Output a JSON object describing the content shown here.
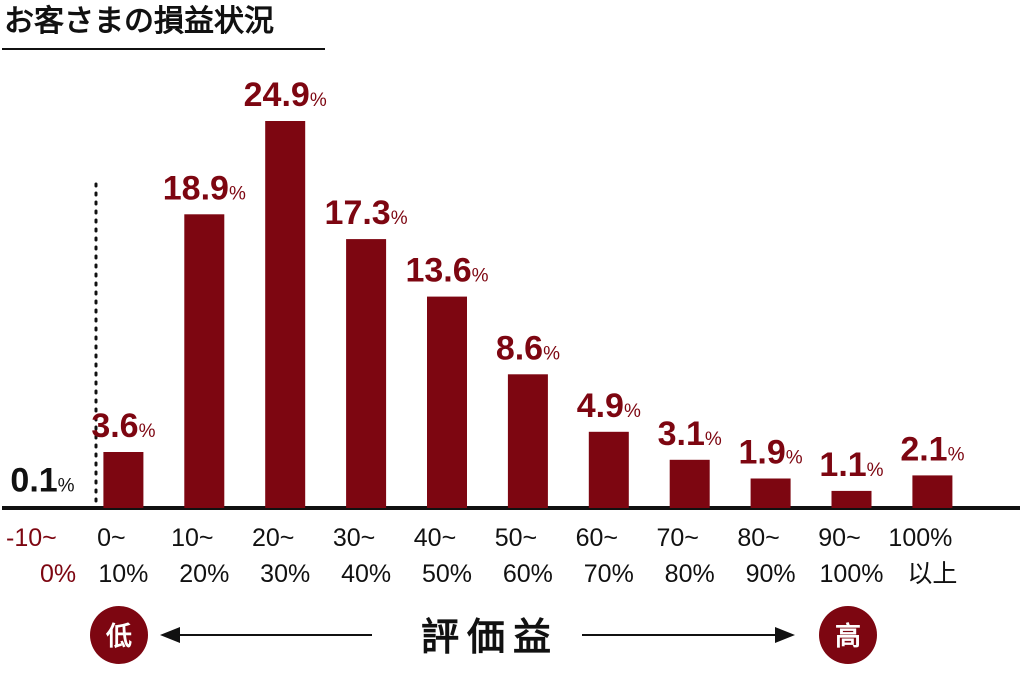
{
  "title": "お客さまの損益状況",
  "colors": {
    "bar": "#7d0611",
    "text_dark": "#111111",
    "negative_tick": "#7d0611"
  },
  "chart_data": {
    "type": "bar",
    "title": "お客さまの損益状況",
    "xlabel": "評価益",
    "ylabel": "",
    "categories": [
      [
        "-10~",
        "0%"
      ],
      [
        "0~",
        "10%"
      ],
      [
        "10~",
        "20%"
      ],
      [
        "20~",
        "30%"
      ],
      [
        "30~",
        "40%"
      ],
      [
        "40~",
        "50%"
      ],
      [
        "50~",
        "60%"
      ],
      [
        "60~",
        "70%"
      ],
      [
        "70~",
        "80%"
      ],
      [
        "80~",
        "90%"
      ],
      [
        "90~",
        "100%"
      ],
      [
        "100%",
        "以上"
      ]
    ],
    "values": [
      0.1,
      3.6,
      18.9,
      24.9,
      17.3,
      13.6,
      8.6,
      4.9,
      3.1,
      1.9,
      1.1,
      2.1
    ],
    "value_labels": [
      "0.1",
      "3.6",
      "18.9",
      "24.9",
      "17.3",
      "13.6",
      "8.6",
      "4.9",
      "3.1",
      "1.9",
      "1.1",
      "2.1"
    ],
    "value_unit": "%",
    "ylim": [
      0,
      25
    ],
    "grid": false,
    "legend": "none"
  },
  "axis": {
    "label": "評価益",
    "low_badge": "低",
    "high_badge": "高"
  }
}
